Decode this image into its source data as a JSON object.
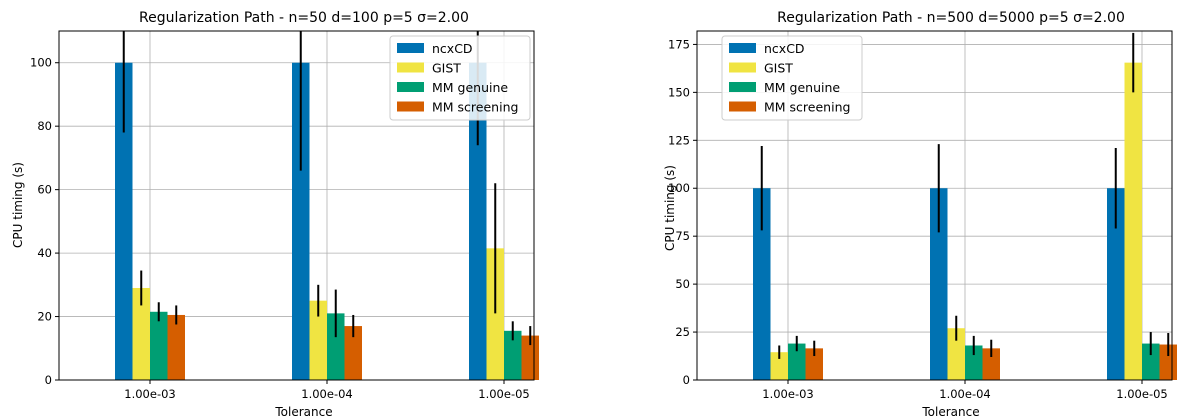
{
  "colors": {
    "ncxCD": "#0072b2",
    "GIST": "#f0e442",
    "MM genuine": "#009e73",
    "MM screening": "#d55e00",
    "errorbar": "#000000",
    "grid": "#b0b0b0"
  },
  "chart_data": [
    {
      "type": "bar",
      "title": "Regularization Path - n=50 d=100 p=5 σ=2.00",
      "xlabel": "Tolerance",
      "ylabel": "CPU timing (s)",
      "categories": [
        "1.00e-03",
        "1.00e-04",
        "1.00e-05"
      ],
      "ylim": [
        0,
        110
      ],
      "yticks": [
        0,
        20,
        40,
        60,
        80,
        100
      ],
      "grid": true,
      "legend_position": "top-right",
      "series": [
        {
          "name": "ncxCD",
          "values": [
            100,
            100,
            100
          ],
          "err": [
            22,
            34,
            26
          ]
        },
        {
          "name": "GIST",
          "values": [
            29,
            25,
            41.5
          ],
          "err": [
            5.5,
            5,
            20.5
          ]
        },
        {
          "name": "MM genuine",
          "values": [
            21.5,
            21,
            15.5
          ],
          "err": [
            3,
            7.5,
            3
          ]
        },
        {
          "name": "MM screening",
          "values": [
            20.5,
            17,
            14
          ],
          "err": [
            3,
            3.5,
            3
          ]
        }
      ]
    },
    {
      "type": "bar",
      "title": "Regularization Path - n=500 d=5000 p=5 σ=2.00",
      "xlabel": "Tolerance",
      "ylabel": "CPU timing (s)",
      "categories": [
        "1.00e-03",
        "1.00e-04",
        "1.00e-05"
      ],
      "ylim": [
        0,
        182
      ],
      "yticks": [
        0,
        25,
        50,
        75,
        100,
        125,
        150,
        175
      ],
      "grid": true,
      "legend_position": "top-left",
      "series": [
        {
          "name": "ncxCD",
          "values": [
            100,
            100,
            100
          ],
          "err": [
            22,
            23,
            21
          ]
        },
        {
          "name": "GIST",
          "values": [
            14.5,
            27,
            165.5
          ],
          "err": [
            3.5,
            6.5,
            15.5
          ]
        },
        {
          "name": "MM genuine",
          "values": [
            19,
            18,
            19
          ],
          "err": [
            4,
            5,
            6
          ]
        },
        {
          "name": "MM screening",
          "values": [
            16.5,
            16.5,
            18.5
          ],
          "err": [
            4,
            4.5,
            6
          ]
        }
      ]
    }
  ]
}
